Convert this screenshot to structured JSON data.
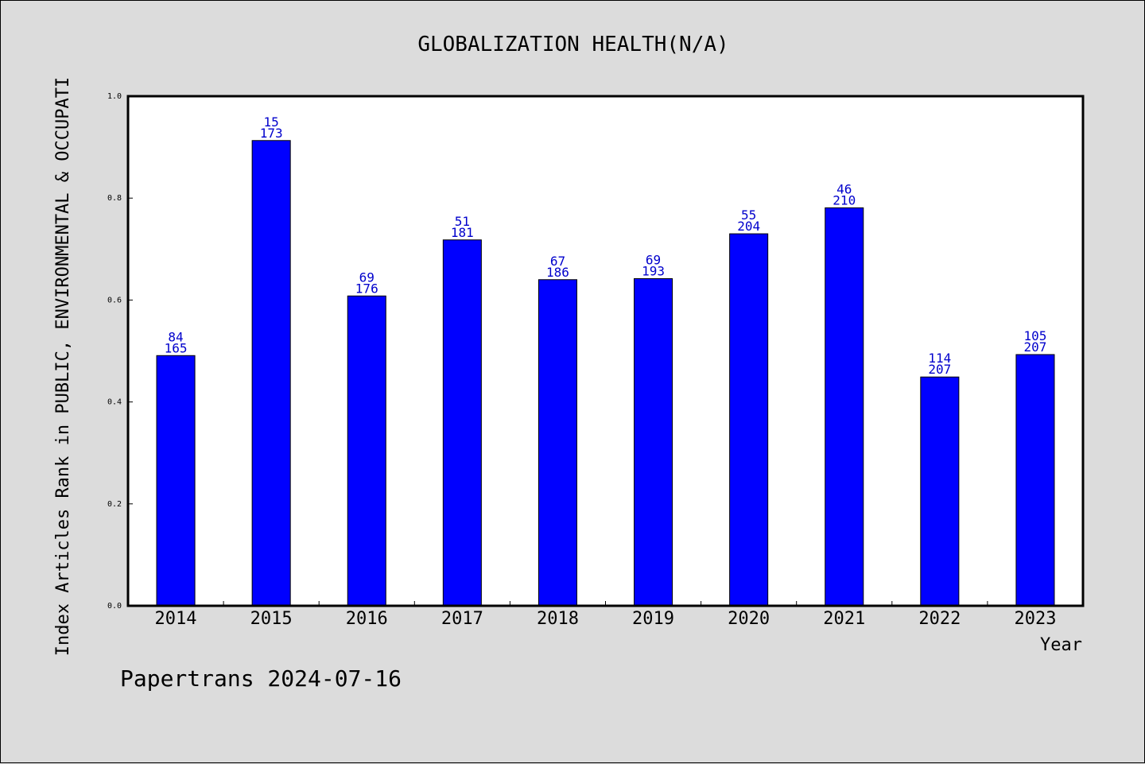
{
  "chart_data": {
    "type": "bar",
    "title": "GLOBALIZATION HEALTH(N/A)",
    "xlabel": "Year",
    "ylabel": "Index Articles Rank in PUBLIC, ENVIRONMENTAL & OCCUPATI",
    "categories": [
      "2014",
      "2015",
      "2016",
      "2017",
      "2018",
      "2019",
      "2020",
      "2021",
      "2022",
      "2023"
    ],
    "values": [
      0.491,
      0.913,
      0.608,
      0.718,
      0.64,
      0.642,
      0.73,
      0.781,
      0.449,
      0.493
    ],
    "label_top": [
      "84",
      "15",
      "69",
      "51",
      "67",
      "69",
      "55",
      "46",
      "114",
      "105"
    ],
    "label_bottom": [
      "165",
      "173",
      "176",
      "181",
      "186",
      "193",
      "204",
      "210",
      "207",
      "207"
    ],
    "yticks": [
      "0.0",
      "0.2",
      "0.4",
      "0.6",
      "0.8",
      "1.0"
    ],
    "ylim": [
      0,
      1.0
    ],
    "grid": false,
    "bar_color": "#0000ff",
    "label_color": "#0000cc"
  },
  "footer": "Papertrans 2024-07-16"
}
